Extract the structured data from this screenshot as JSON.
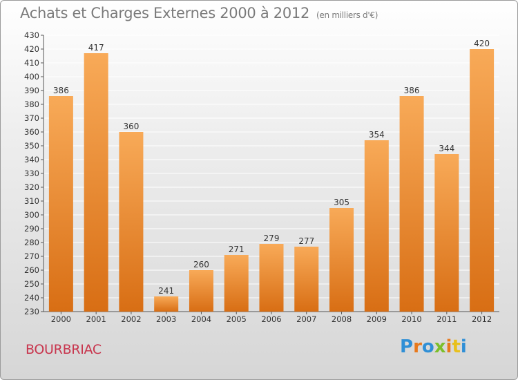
{
  "header": {
    "title": "Achats et Charges Externes 2000 à 2012",
    "subtitle": "(en milliers d'€)"
  },
  "commune": "BOURBRIAC",
  "logo": {
    "letters": [
      "P",
      "r",
      "o",
      "x",
      "i",
      "t",
      "i"
    ],
    "colors": [
      "#2f8fd6",
      "#e8791c",
      "#2f8fd6",
      "#7cbf2a",
      "#e8791c",
      "#e8c01c",
      "#2f8fd6"
    ]
  },
  "colors": {
    "bar_top": "#f8aa58",
    "bar_bottom": "#d86e14",
    "gridline": "#ffffff"
  },
  "chart_data": {
    "type": "bar",
    "title": "Achats et Charges Externes 2000 à 2012",
    "subtitle": "(en milliers d'€)",
    "categories": [
      "2000",
      "2001",
      "2002",
      "2003",
      "2004",
      "2005",
      "2006",
      "2007",
      "2008",
      "2009",
      "2010",
      "2011",
      "2012"
    ],
    "values": [
      386,
      417,
      360,
      241,
      260,
      271,
      279,
      277,
      305,
      354,
      386,
      344,
      420
    ],
    "ylim": [
      230,
      430
    ],
    "yticks": [
      230,
      240,
      250,
      260,
      270,
      280,
      290,
      300,
      310,
      320,
      330,
      340,
      350,
      360,
      370,
      380,
      390,
      400,
      410,
      420,
      430
    ],
    "grid": true,
    "xlabel": "",
    "ylabel": ""
  }
}
